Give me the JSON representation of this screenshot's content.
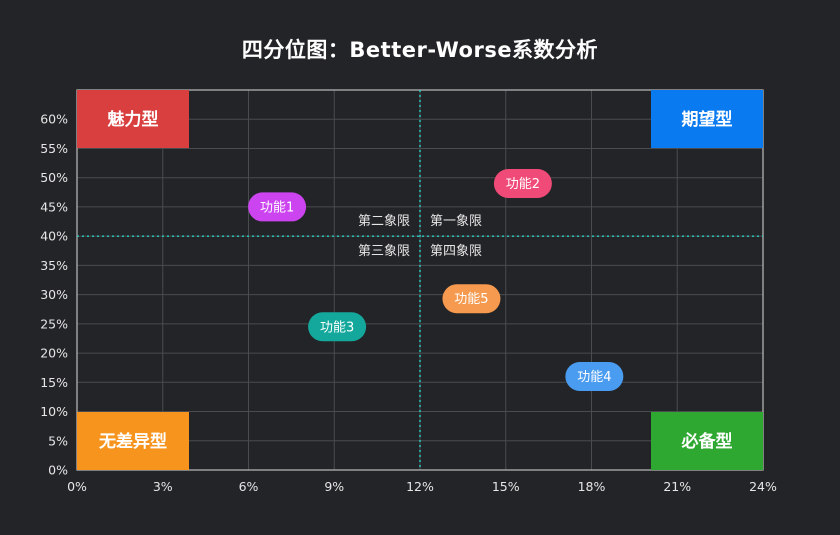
{
  "title": "四分位图：Better-Worse系数分析",
  "chart_data": {
    "type": "scatter",
    "title": "四分位图：Better-Worse系数分析",
    "xlabel": "",
    "ylabel": "",
    "xlim": [
      0,
      0.24
    ],
    "ylim": [
      0,
      0.65
    ],
    "x_ticks": [
      "0%",
      "3%",
      "6%",
      "9%",
      "12%",
      "15%",
      "18%",
      "21%",
      "24%"
    ],
    "x_tick_values": [
      0,
      0.03,
      0.06,
      0.09,
      0.12,
      0.15,
      0.18,
      0.21,
      0.24
    ],
    "y_ticks": [
      "0%",
      "5%",
      "10%",
      "15%",
      "20%",
      "25%",
      "30%",
      "35%",
      "40%",
      "45%",
      "50%",
      "55%",
      "60%"
    ],
    "y_tick_values": [
      0,
      0.05,
      0.1,
      0.15,
      0.2,
      0.25,
      0.3,
      0.35,
      0.4,
      0.45,
      0.5,
      0.55,
      0.6
    ],
    "grid": true,
    "divider": {
      "x": 0.12,
      "y": 0.4,
      "color": "#26d5c8"
    },
    "points": [
      {
        "label": "功能1",
        "x": 0.07,
        "y": 0.45,
        "color": "#cc44f0"
      },
      {
        "label": "功能2",
        "x": 0.156,
        "y": 0.49,
        "color": "#f04a78"
      },
      {
        "label": "功能3",
        "x": 0.091,
        "y": 0.245,
        "color": "#14a89c"
      },
      {
        "label": "功能4",
        "x": 0.181,
        "y": 0.16,
        "color": "#4a9cf0"
      },
      {
        "label": "功能5",
        "x": 0.138,
        "y": 0.293,
        "color": "#f59a4e"
      }
    ],
    "quadrant_labels": {
      "q1": "第一象限",
      "q2": "第二象限",
      "q3": "第三象限",
      "q4": "第四象限"
    },
    "corner_labels": [
      {
        "position": "top-left",
        "text": "魅力型",
        "color": "#d93f3f"
      },
      {
        "position": "top-right",
        "text": "期望型",
        "color": "#0a7af0"
      },
      {
        "position": "bottom-left",
        "text": "无差异型",
        "color": "#f7941d"
      },
      {
        "position": "bottom-right",
        "text": "必备型",
        "color": "#2fa832"
      }
    ]
  }
}
